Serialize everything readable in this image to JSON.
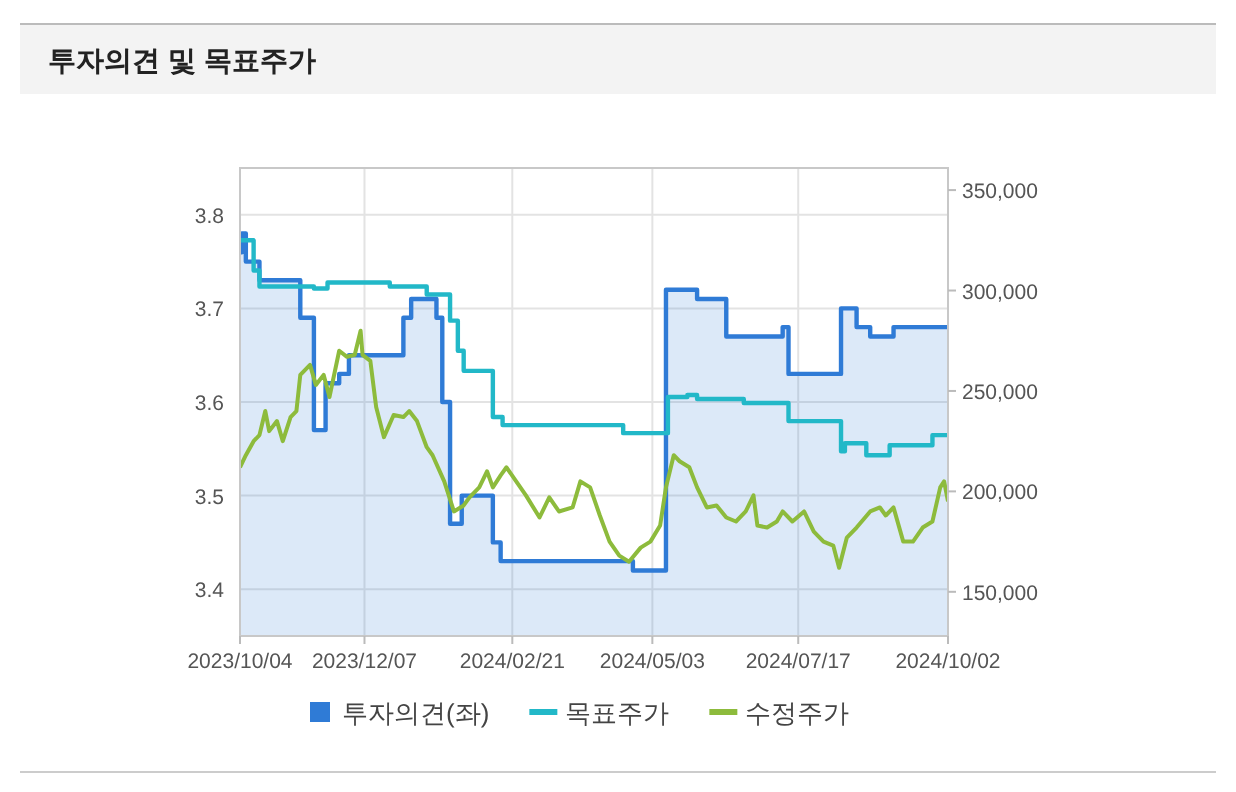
{
  "chart_data": {
    "type": "line",
    "title": "투자의견 및 목표주가",
    "xlim": [
      "2023-10-04",
      "2024-10-02"
    ],
    "xticks": [
      {
        "value": "2023-10-04",
        "label": "2023/10/04"
      },
      {
        "value": "2023-12-07",
        "label": "2023/12/07"
      },
      {
        "value": "2024-02-21",
        "label": "2024/02/21"
      },
      {
        "value": "2024-05-03",
        "label": "2024/05/03"
      },
      {
        "value": "2024-07-17",
        "label": "2024/07/17"
      },
      {
        "value": "2024-10-02",
        "label": "2024/10/02"
      }
    ],
    "ylim": [
      3.35,
      3.85
    ],
    "yticks": [
      3.4,
      3.5,
      3.6,
      3.7,
      3.8
    ],
    "y2lim": [
      128000,
      361000
    ],
    "y2ticks": [
      {
        "value": 150000,
        "label": "150,000"
      },
      {
        "value": 200000,
        "label": "200,000"
      },
      {
        "value": 250000,
        "label": "250,000"
      },
      {
        "value": 300000,
        "label": "300,000"
      },
      {
        "value": 350000,
        "label": "350,000"
      }
    ],
    "grid": true,
    "legend": "bottom",
    "series": [
      {
        "name": "투자의견(좌)",
        "type": "area",
        "color": "#2f7bd6",
        "x": [
          "2023-10-04",
          "2023-10-05",
          "2023-10-05",
          "2023-10-07",
          "2023-10-07",
          "2023-10-14",
          "2023-10-14",
          "2023-11-04",
          "2023-11-04",
          "2023-11-11",
          "2023-11-11",
          "2023-11-17",
          "2023-11-17",
          "2023-11-24",
          "2023-11-24",
          "2023-11-29",
          "2023-11-29",
          "2023-12-27",
          "2023-12-27",
          "2023-12-31",
          "2023-12-31",
          "2024-01-13",
          "2024-01-13",
          "2024-01-16",
          "2024-01-16",
          "2024-01-20",
          "2024-01-20",
          "2024-01-26",
          "2024-01-26",
          "2024-02-11",
          "2024-02-11",
          "2024-02-15",
          "2024-02-15",
          "2024-04-23",
          "2024-04-23",
          "2024-05-10",
          "2024-05-10",
          "2024-05-26",
          "2024-05-26",
          "2024-06-10",
          "2024-06-10",
          "2024-07-09",
          "2024-07-09",
          "2024-07-12",
          "2024-07-12",
          "2024-08-08",
          "2024-08-08",
          "2024-08-16",
          "2024-08-16",
          "2024-08-23",
          "2024-08-23",
          "2024-09-04",
          "2024-09-04",
          "2024-10-02"
        ],
        "values": [
          3.76,
          3.76,
          3.78,
          3.78,
          3.75,
          3.75,
          3.73,
          3.73,
          3.69,
          3.69,
          3.57,
          3.57,
          3.62,
          3.62,
          3.63,
          3.63,
          3.65,
          3.65,
          3.69,
          3.69,
          3.71,
          3.71,
          3.69,
          3.69,
          3.6,
          3.6,
          3.47,
          3.47,
          3.5,
          3.5,
          3.45,
          3.45,
          3.43,
          3.43,
          3.42,
          3.42,
          3.72,
          3.72,
          3.71,
          3.71,
          3.67,
          3.67,
          3.68,
          3.68,
          3.63,
          3.63,
          3.7,
          3.7,
          3.68,
          3.68,
          3.67,
          3.67,
          3.68,
          3.68
        ]
      },
      {
        "name": "목표주가",
        "type": "step",
        "axis": "y2",
        "color": "#22b8c8",
        "x": [
          "2023-10-04",
          "2023-10-11",
          "2023-10-14",
          "2023-11-11",
          "2023-11-18",
          "2023-12-20",
          "2024-01-08",
          "2024-01-20",
          "2024-01-24",
          "2024-01-27",
          "2024-02-11",
          "2024-02-16",
          "2024-04-18",
          "2024-05-11",
          "2024-05-21",
          "2024-05-26",
          "2024-06-19",
          "2024-07-12",
          "2024-08-08",
          "2024-08-10",
          "2024-08-21",
          "2024-09-02",
          "2024-09-24",
          "2024-10-02"
        ],
        "values": [
          325000,
          310000,
          302000,
          301000,
          304000,
          302000,
          298000,
          285000,
          270000,
          260000,
          237000,
          233000,
          229000,
          247000,
          248000,
          246000,
          244000,
          235000,
          220000,
          224000,
          218000,
          223000,
          228000,
          229000
        ]
      },
      {
        "name": "수정주가",
        "axis": "y2",
        "color": "#8dbb3c",
        "x": [
          "2023-10-04",
          "2023-10-07",
          "2023-10-11",
          "2023-10-14",
          "2023-10-17",
          "2023-10-19",
          "2023-10-23",
          "2023-10-26",
          "2023-10-30",
          "2023-11-02",
          "2023-11-04",
          "2023-11-09",
          "2023-11-12",
          "2023-11-16",
          "2023-11-19",
          "2023-11-24",
          "2023-11-28",
          "2023-12-02",
          "2023-12-05",
          "2023-12-06",
          "2023-12-10",
          "2023-12-13",
          "2023-12-17",
          "2023-12-22",
          "2023-12-27",
          "2023-12-30",
          "2024-01-03",
          "2024-01-08",
          "2024-01-11",
          "2024-01-17",
          "2024-01-22",
          "2024-01-27",
          "2024-01-30",
          "2024-02-04",
          "2024-02-08",
          "2024-02-11",
          "2024-02-15",
          "2024-02-18",
          "2024-02-23",
          "2024-02-28",
          "2024-03-06",
          "2024-03-11",
          "2024-03-16",
          "2024-03-23",
          "2024-03-27",
          "2024-04-01",
          "2024-04-06",
          "2024-04-11",
          "2024-04-16",
          "2024-04-21",
          "2024-04-27",
          "2024-05-02",
          "2024-05-07",
          "2024-05-10",
          "2024-05-14",
          "2024-05-17",
          "2024-05-22",
          "2024-05-26",
          "2024-05-31",
          "2024-06-05",
          "2024-06-10",
          "2024-06-15",
          "2024-06-20",
          "2024-06-24",
          "2024-06-26",
          "2024-07-01",
          "2024-07-06",
          "2024-07-09",
          "2024-07-14",
          "2024-07-20",
          "2024-07-25",
          "2024-07-30",
          "2024-08-04",
          "2024-08-07",
          "2024-08-11",
          "2024-08-16",
          "2024-08-23",
          "2024-08-28",
          "2024-08-31",
          "2024-09-04",
          "2024-09-09",
          "2024-09-14",
          "2024-09-19",
          "2024-09-24",
          "2024-09-28",
          "2024-09-30",
          "2024-10-02"
        ],
        "values": [
          212000,
          218000,
          225000,
          228000,
          240000,
          230000,
          235000,
          225000,
          237000,
          240000,
          258000,
          263000,
          253000,
          258000,
          247000,
          270000,
          267000,
          268000,
          280000,
          268000,
          265000,
          242000,
          227000,
          238000,
          237000,
          240000,
          235000,
          222000,
          218000,
          205000,
          190000,
          193000,
          197000,
          202000,
          210000,
          202000,
          208000,
          212000,
          205000,
          198000,
          187000,
          197000,
          190000,
          192000,
          205000,
          202000,
          188000,
          175000,
          168000,
          165000,
          172000,
          175000,
          183000,
          202000,
          218000,
          215000,
          212000,
          202000,
          192000,
          193000,
          187000,
          185000,
          190000,
          198000,
          183000,
          182000,
          185000,
          190000,
          185000,
          190000,
          180000,
          175000,
          173000,
          162000,
          177000,
          182000,
          190000,
          192000,
          188000,
          192000,
          175000,
          175000,
          182000,
          185000,
          202000,
          205000,
          195000
        ]
      }
    ]
  }
}
